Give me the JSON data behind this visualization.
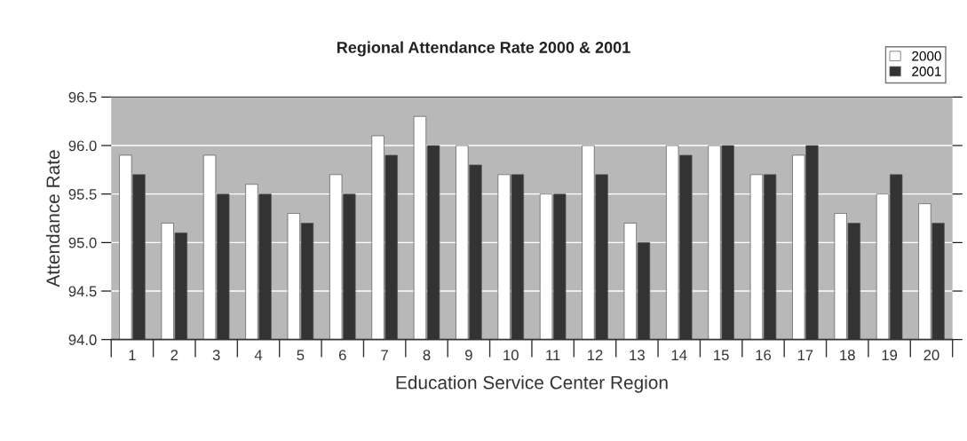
{
  "chart_data": {
    "type": "bar",
    "title": "Regional Attendance Rate 2000 & 2001",
    "xlabel": "Education Service Center Region",
    "ylabel": "Attendance Rate",
    "categories": [
      "1",
      "2",
      "3",
      "4",
      "5",
      "6",
      "7",
      "8",
      "9",
      "10",
      "11",
      "12",
      "13",
      "14",
      "15",
      "16",
      "17",
      "18",
      "19",
      "20"
    ],
    "series": [
      {
        "name": "2000",
        "color": "#ffffff",
        "values": [
          95.9,
          95.2,
          95.9,
          95.6,
          95.3,
          95.7,
          96.1,
          96.3,
          96.0,
          95.7,
          95.5,
          96.0,
          95.2,
          96.0,
          96.0,
          95.7,
          95.9,
          95.3,
          95.5,
          95.4
        ]
      },
      {
        "name": "2001",
        "color": "#333333",
        "values": [
          95.7,
          95.1,
          95.5,
          95.5,
          95.2,
          95.5,
          95.9,
          96.0,
          95.8,
          95.7,
          95.5,
          95.7,
          95.0,
          95.9,
          96.0,
          95.7,
          96.0,
          95.2,
          95.7,
          95.2
        ]
      }
    ],
    "ylim": [
      94.0,
      96.5
    ],
    "yticks": [
      {
        "value": 94.0,
        "label": "94.0"
      },
      {
        "value": 94.5,
        "label": "94.5"
      },
      {
        "value": 95.0,
        "label": "95.0"
      },
      {
        "value": 95.5,
        "label": "95.5"
      },
      {
        "value": 96.0,
        "label": "96.0"
      },
      {
        "value": 96.5,
        "label": "96.5"
      }
    ],
    "grid": "y",
    "legend": "top right"
  }
}
